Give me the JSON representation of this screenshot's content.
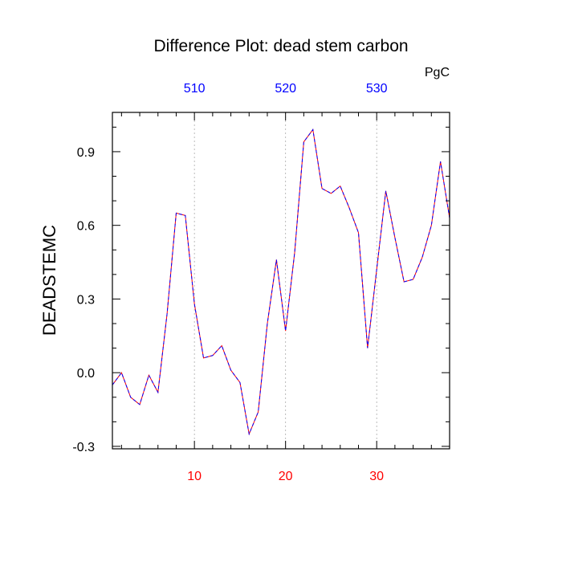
{
  "chart_data": {
    "type": "line",
    "title": "Difference Plot: dead stem carbon",
    "ylabel": "DEADSTEMC",
    "units": "PgC",
    "xlim": [
      1,
      38
    ],
    "ylim": [
      -0.31,
      1.06
    ],
    "yticks": [
      -0.3,
      0.0,
      0.3,
      0.6,
      0.9
    ],
    "ytick_labels": [
      "-0.3",
      "0.0",
      "0.3",
      "0.6",
      "0.9"
    ],
    "xticks_bottom": [
      10,
      20,
      30
    ],
    "xtick_labels_bottom": [
      "10",
      "20",
      "30"
    ],
    "xticks_top": [
      10,
      20,
      30
    ],
    "xtick_labels_top": [
      "510",
      "520",
      "530"
    ],
    "grid": "vertical dotted at major x ticks",
    "colors": {
      "bottom_ticks": "#ff0000",
      "top_ticks": "#0000ff",
      "series_a": "#ff0000",
      "series_b": "#0000ff"
    },
    "x": [
      1,
      2,
      3,
      4,
      5,
      6,
      7,
      8,
      9,
      10,
      11,
      12,
      13,
      14,
      15,
      16,
      17,
      18,
      19,
      20,
      21,
      22,
      23,
      24,
      25,
      26,
      27,
      28,
      29,
      30,
      31,
      32,
      33,
      34,
      35,
      36,
      37,
      38
    ],
    "series": [
      {
        "values": [
          -0.05,
          0.0,
          -0.1,
          -0.13,
          -0.01,
          -0.08,
          0.24,
          0.65,
          0.64,
          0.28,
          0.06,
          0.07,
          0.11,
          0.01,
          -0.04,
          -0.25,
          -0.16,
          0.2,
          0.46,
          0.17,
          0.49,
          0.94,
          0.99,
          0.75,
          0.73,
          0.76,
          0.67,
          0.57,
          0.1,
          0.42,
          0.74,
          0.55,
          0.37,
          0.38,
          0.47,
          0.6,
          0.86,
          0.63
        ]
      },
      {
        "values": [
          -0.05,
          0.0,
          -0.1,
          -0.13,
          -0.01,
          -0.08,
          0.24,
          0.65,
          0.64,
          0.28,
          0.06,
          0.07,
          0.11,
          0.01,
          -0.04,
          -0.25,
          -0.16,
          0.2,
          0.46,
          0.17,
          0.49,
          0.94,
          0.99,
          0.75,
          0.73,
          0.76,
          0.67,
          0.57,
          0.1,
          0.42,
          0.74,
          0.55,
          0.37,
          0.38,
          0.47,
          0.6,
          0.86,
          0.63
        ]
      }
    ]
  }
}
